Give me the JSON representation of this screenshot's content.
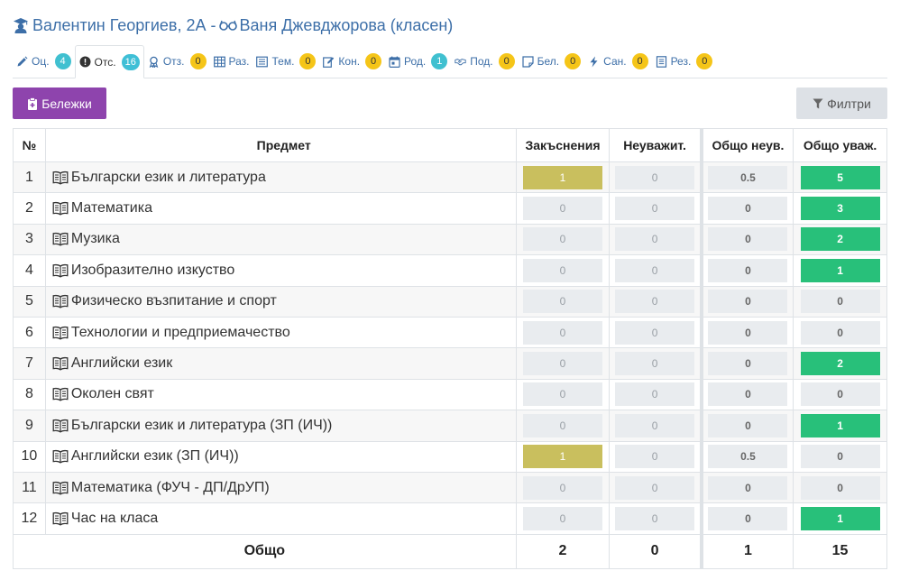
{
  "header": {
    "student": "Валентин Георгиев, 2А -",
    "teacher": "Ваня Джевджорова (класен)"
  },
  "tabs": [
    {
      "label": "Оц.",
      "count": "4",
      "icon": "pencil-icon",
      "badge": "teal"
    },
    {
      "label": "Отс.",
      "count": "16",
      "icon": "exclamation-circle-icon",
      "badge": "cyan",
      "active": true
    },
    {
      "label": "Отз.",
      "count": "0",
      "icon": "award-icon",
      "badge": "yellow"
    },
    {
      "label": "Раз.",
      "count": "",
      "icon": "table-icon",
      "badge": ""
    },
    {
      "label": "Тем.",
      "count": "0",
      "icon": "list-icon",
      "badge": "yellow"
    },
    {
      "label": "Кон.",
      "count": "0",
      "icon": "edit-icon",
      "badge": "yellow"
    },
    {
      "label": "Род.",
      "count": "1",
      "icon": "calendar-icon",
      "badge": "teal"
    },
    {
      "label": "Под.",
      "count": "0",
      "icon": "handshake-icon",
      "badge": "yellow"
    },
    {
      "label": "Бел.",
      "count": "0",
      "icon": "note-icon",
      "badge": "yellow"
    },
    {
      "label": "Сан.",
      "count": "0",
      "icon": "bolt-icon",
      "badge": "yellow"
    },
    {
      "label": "Рез.",
      "count": "0",
      "icon": "document-icon",
      "badge": "yellow"
    }
  ],
  "buttons": {
    "notes": "Бележки",
    "filters": "Филтри"
  },
  "table": {
    "headers": [
      "№",
      "Предмет",
      "Закъснения",
      "Неуважит.",
      "Общо неув.",
      "Общо уваж."
    ],
    "rows": [
      {
        "num": "1",
        "subject": "Български език и литература",
        "late": "1",
        "unexcused": "0",
        "total_unexcused": "0.5",
        "total_excused": "5"
      },
      {
        "num": "2",
        "subject": "Математика",
        "late": "0",
        "unexcused": "0",
        "total_unexcused": "0",
        "total_excused": "3"
      },
      {
        "num": "3",
        "subject": "Музика",
        "late": "0",
        "unexcused": "0",
        "total_unexcused": "0",
        "total_excused": "2"
      },
      {
        "num": "4",
        "subject": "Изобразително изкуство",
        "late": "0",
        "unexcused": "0",
        "total_unexcused": "0",
        "total_excused": "1"
      },
      {
        "num": "5",
        "subject": "Физическо възпитание и спорт",
        "late": "0",
        "unexcused": "0",
        "total_unexcused": "0",
        "total_excused": "0"
      },
      {
        "num": "6",
        "subject": "Технологии и предприемачество",
        "late": "0",
        "unexcused": "0",
        "total_unexcused": "0",
        "total_excused": "0"
      },
      {
        "num": "7",
        "subject": "Английски език",
        "late": "0",
        "unexcused": "0",
        "total_unexcused": "0",
        "total_excused": "2"
      },
      {
        "num": "8",
        "subject": "Околен свят",
        "late": "0",
        "unexcused": "0",
        "total_unexcused": "0",
        "total_excused": "0"
      },
      {
        "num": "9",
        "subject": "Български език и литература (ЗП (ИЧ))",
        "late": "0",
        "unexcused": "0",
        "total_unexcused": "0",
        "total_excused": "1"
      },
      {
        "num": "10",
        "subject": "Английски език (ЗП (ИЧ))",
        "late": "1",
        "unexcused": "0",
        "total_unexcused": "0.5",
        "total_excused": "0"
      },
      {
        "num": "11",
        "subject": "Математика (ФУЧ - ДП/ДрУП)",
        "late": "0",
        "unexcused": "0",
        "total_unexcused": "0",
        "total_excused": "0"
      },
      {
        "num": "12",
        "subject": "Час на класа",
        "late": "0",
        "unexcused": "0",
        "total_unexcused": "0",
        "total_excused": "1"
      }
    ],
    "totals": {
      "label": "Общо",
      "late": "2",
      "unexcused": "0",
      "total_unexcused": "1",
      "total_excused": "15"
    }
  },
  "colors": {
    "accent_purple": "#8e44ad",
    "late_olive": "#c9bf5e",
    "excused_green": "#28c07a",
    "link_blue": "#3d6fa8"
  }
}
